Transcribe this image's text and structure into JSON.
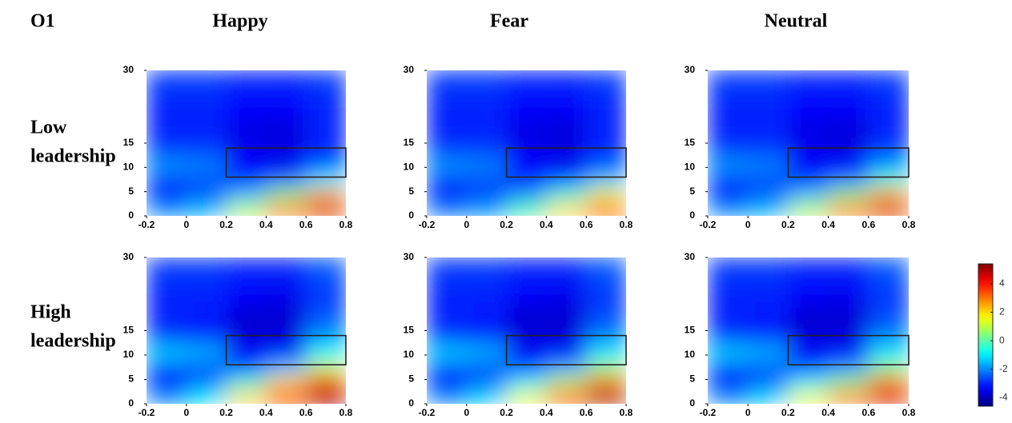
{
  "label": "O1",
  "columns": [
    "Happy",
    "Fear",
    "Neutral"
  ],
  "rows": [
    [
      "Low",
      "leadership"
    ],
    [
      "High",
      "leadership"
    ]
  ],
  "colorbar": {
    "lim": [
      -4.6,
      5.4
    ],
    "ticks": [
      -4,
      -2,
      0,
      2,
      4
    ]
  },
  "chart_data": [
    {
      "type": "heatmap",
      "x": [
        -0.1,
        0.1,
        0.3,
        0.5,
        0.7
      ],
      "y": [
        1.5,
        4.5,
        7.5,
        10.5,
        13.5,
        17.5,
        22.5,
        27.5
      ],
      "values": [
        [
          -2,
          -1.5,
          1,
          3,
          4.5
        ],
        [
          -3,
          -2.5,
          -1.5,
          0.5,
          2.5
        ],
        [
          -2.8,
          -2.6,
          -3,
          -2.5,
          -1
        ],
        [
          -1.8,
          -2,
          -3.3,
          -3.5,
          -2.5
        ],
        [
          -2.8,
          -2.8,
          -3.5,
          -3.6,
          -3
        ],
        [
          -3,
          -3,
          -3.6,
          -3.7,
          -3
        ],
        [
          -3,
          -3,
          -3.3,
          -3.4,
          -3
        ],
        [
          -2.8,
          -2.8,
          -3,
          -3,
          -2.8
        ]
      ],
      "xlim": [
        -0.2,
        0.8
      ],
      "xticks": [
        -0.2,
        0,
        0.2,
        0.4,
        0.6,
        0.8
      ],
      "ylim": [
        0,
        30
      ],
      "yticks": [
        0,
        5,
        10,
        15,
        30
      ],
      "box": {
        "x": [
          0.2,
          0.8
        ],
        "y": [
          8,
          14
        ]
      }
    },
    {
      "type": "heatmap",
      "x": [
        -0.1,
        0.1,
        0.3,
        0.5,
        0.7
      ],
      "y": [
        1.5,
        4.5,
        7.5,
        10.5,
        13.5,
        17.5,
        22.5,
        27.5
      ],
      "values": [
        [
          -2.2,
          -1.8,
          0,
          2,
          3.5
        ],
        [
          -3,
          -2.7,
          -2,
          -0.5,
          1.5
        ],
        [
          -2.8,
          -2.6,
          -3,
          -2.6,
          -1.5
        ],
        [
          -1.8,
          -2,
          -3.3,
          -3.5,
          -2.5
        ],
        [
          -2.8,
          -2.8,
          -3.5,
          -3.6,
          -3
        ],
        [
          -3,
          -3,
          -3.6,
          -3.7,
          -3
        ],
        [
          -3,
          -3,
          -3.3,
          -3.4,
          -3
        ],
        [
          -2.8,
          -2.8,
          -3,
          -3,
          -2.8
        ]
      ],
      "xlim": [
        -0.2,
        0.8
      ],
      "xticks": [
        -0.2,
        0,
        0.2,
        0.4,
        0.6,
        0.8
      ],
      "ylim": [
        0,
        30
      ],
      "yticks": [
        0,
        5,
        10,
        15,
        30
      ],
      "box": {
        "x": [
          0.2,
          0.8
        ],
        "y": [
          8,
          14
        ]
      }
    },
    {
      "type": "heatmap",
      "x": [
        -0.1,
        0.1,
        0.3,
        0.5,
        0.7
      ],
      "y": [
        1.5,
        4.5,
        7.5,
        10.5,
        13.5,
        17.5,
        22.5,
        27.5
      ],
      "values": [
        [
          -2,
          -1.5,
          1,
          3,
          4.5
        ],
        [
          -3,
          -2.5,
          -1.5,
          0.5,
          2.5
        ],
        [
          -2.8,
          -2.6,
          -3,
          -2.3,
          -0.5
        ],
        [
          -1.8,
          -2,
          -3.3,
          -3.4,
          -1.8
        ],
        [
          -2.8,
          -2.8,
          -3.5,
          -3.6,
          -2.8
        ],
        [
          -3,
          -3,
          -3.6,
          -3.7,
          -3
        ],
        [
          -3,
          -3,
          -3.3,
          -3.4,
          -3
        ],
        [
          -2.8,
          -2.8,
          -3,
          -3,
          -2.8
        ]
      ],
      "xlim": [
        -0.2,
        0.8
      ],
      "xticks": [
        -0.2,
        0,
        0.2,
        0.4,
        0.6,
        0.8
      ],
      "ylim": [
        0,
        30
      ],
      "yticks": [
        0,
        5,
        10,
        15,
        30
      ],
      "box": {
        "x": [
          0.2,
          0.8
        ],
        "y": [
          8,
          14
        ]
      }
    },
    {
      "type": "heatmap",
      "x": [
        -0.1,
        0.1,
        0.3,
        0.5,
        0.7
      ],
      "y": [
        1.5,
        4.5,
        7.5,
        10.5,
        13.5,
        17.5,
        22.5,
        27.5
      ],
      "values": [
        [
          -2,
          -1,
          2,
          4,
          5
        ],
        [
          -3,
          -2.3,
          -0.5,
          2,
          4
        ],
        [
          -2.8,
          -2.6,
          -2.8,
          -1.5,
          1
        ],
        [
          -1.2,
          -1.5,
          -3.3,
          -3.3,
          -0.8
        ],
        [
          -2.8,
          -2.9,
          -3.7,
          -3.7,
          -1.8
        ],
        [
          -3,
          -3.1,
          -3.8,
          -3.8,
          -2.5
        ],
        [
          -3,
          -3,
          -3.4,
          -3.5,
          -2.8
        ],
        [
          -2.8,
          -2.8,
          -3,
          -3,
          -2.5
        ]
      ],
      "xlim": [
        -0.2,
        0.8
      ],
      "xticks": [
        -0.2,
        0,
        0.2,
        0.4,
        0.6,
        0.8
      ],
      "ylim": [
        0,
        30
      ],
      "yticks": [
        0,
        5,
        10,
        15,
        30
      ],
      "box": {
        "x": [
          0.2,
          0.8
        ],
        "y": [
          8,
          14
        ]
      }
    },
    {
      "type": "heatmap",
      "x": [
        -0.1,
        0.1,
        0.3,
        0.5,
        0.7
      ],
      "y": [
        1.5,
        4.5,
        7.5,
        10.5,
        13.5,
        17.5,
        22.5,
        27.5
      ],
      "values": [
        [
          -2,
          -1.2,
          1.5,
          3.5,
          5
        ],
        [
          -3,
          -2.4,
          -1,
          1,
          3
        ],
        [
          -2.8,
          -2.6,
          -2.8,
          -1.8,
          0.5
        ],
        [
          -1.2,
          -1.5,
          -3.3,
          -3.3,
          -1
        ],
        [
          -2.8,
          -2.9,
          -3.7,
          -3.7,
          -2
        ],
        [
          -3,
          -3.1,
          -3.8,
          -3.8,
          -2.6
        ],
        [
          -3,
          -3,
          -3.4,
          -3.5,
          -2.8
        ],
        [
          -2.8,
          -2.8,
          -3,
          -3,
          -2.5
        ]
      ],
      "xlim": [
        -0.2,
        0.8
      ],
      "xticks": [
        -0.2,
        0,
        0.2,
        0.4,
        0.6,
        0.8
      ],
      "ylim": [
        0,
        30
      ],
      "yticks": [
        0,
        5,
        10,
        15,
        30
      ],
      "box": {
        "x": [
          0.2,
          0.8
        ],
        "y": [
          8,
          14
        ]
      }
    },
    {
      "type": "heatmap",
      "x": [
        -0.1,
        0.1,
        0.3,
        0.5,
        0.7
      ],
      "y": [
        1.5,
        4.5,
        7.5,
        10.5,
        13.5,
        17.5,
        22.5,
        27.5
      ],
      "values": [
        [
          -2,
          -1.2,
          1.5,
          3,
          4.5
        ],
        [
          -3,
          -2.4,
          -1,
          0.5,
          3
        ],
        [
          -2.8,
          -2.6,
          -2.8,
          -2,
          0.3
        ],
        [
          -1.2,
          -1.5,
          -3.3,
          -3.3,
          -1
        ],
        [
          -2.8,
          -2.9,
          -3.7,
          -3.7,
          -2
        ],
        [
          -3,
          -3.1,
          -3.8,
          -3.8,
          -2.6
        ],
        [
          -3,
          -3,
          -3.4,
          -3.5,
          -2.8
        ],
        [
          -2.8,
          -2.8,
          -3,
          -3,
          -2.5
        ]
      ],
      "xlim": [
        -0.2,
        0.8
      ],
      "xticks": [
        -0.2,
        0,
        0.2,
        0.4,
        0.6,
        0.8
      ],
      "ylim": [
        0,
        30
      ],
      "yticks": [
        0,
        5,
        10,
        15,
        30
      ],
      "box": {
        "x": [
          0.2,
          0.8
        ],
        "y": [
          8,
          14
        ]
      }
    }
  ]
}
